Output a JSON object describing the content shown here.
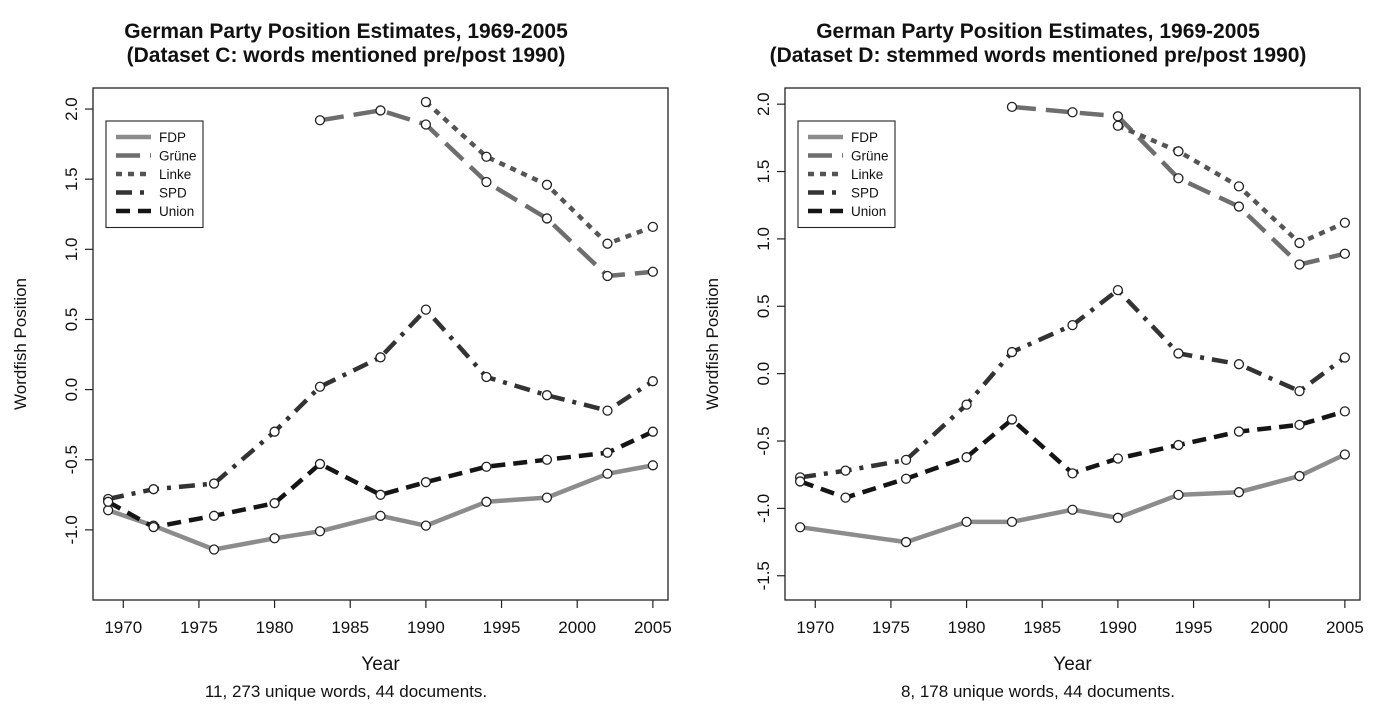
{
  "chart_data": [
    {
      "type": "line",
      "title": "German Party Position Estimates, 1969-2005",
      "subtitle": "(Dataset C: words mentioned pre/post 1990)",
      "xlabel": "Year",
      "ylabel": "Wordfish Position",
      "caption": "11, 273 unique words, 44 documents.",
      "xlim": [
        1968,
        2006
      ],
      "ylim": [
        -1.5,
        2.15
      ],
      "xticks": [
        1970,
        1975,
        1980,
        1985,
        1990,
        1995,
        2000,
        2005
      ],
      "yticks": [
        -1.0,
        -0.5,
        0.0,
        0.5,
        1.0,
        1.5,
        2.0
      ],
      "ytick_labels": [
        "-1.0",
        "-0.5",
        "0.0",
        "0.5",
        "1.0",
        "1.5",
        "2.0"
      ],
      "legend_position": "top-left",
      "series": [
        {
          "name": "FDP",
          "color": "#8c8c8c",
          "dash": "solid",
          "x": [
            1969,
            1972,
            1976,
            1980,
            1983,
            1987,
            1990,
            1994,
            1998,
            2002,
            2005
          ],
          "y": [
            -0.86,
            -0.97,
            -1.14,
            -1.06,
            -1.01,
            -0.9,
            -0.97,
            -0.8,
            -0.77,
            -0.6,
            -0.54
          ]
        },
        {
          "name": "Grüne",
          "color": "#6e6e6e",
          "dash": "longdash",
          "x": [
            1983,
            1987,
            1990,
            1994,
            1998,
            2002,
            2005
          ],
          "y": [
            1.92,
            1.99,
            1.89,
            1.48,
            1.22,
            0.81,
            0.84
          ]
        },
        {
          "name": "Linke",
          "color": "#555555",
          "dash": "dotted",
          "x": [
            1990,
            1994,
            1998,
            2002,
            2005
          ],
          "y": [
            2.05,
            1.66,
            1.46,
            1.04,
            1.16
          ]
        },
        {
          "name": "SPD",
          "color": "#333333",
          "dash": "dashdot",
          "x": [
            1969,
            1972,
            1976,
            1980,
            1983,
            1987,
            1990,
            1994,
            1998,
            2002,
            2005
          ],
          "y": [
            -0.78,
            -0.71,
            -0.67,
            -0.3,
            0.02,
            0.23,
            0.57,
            0.09,
            -0.04,
            -0.15,
            0.06
          ]
        },
        {
          "name": "Union",
          "color": "#151515",
          "dash": "dashed",
          "x": [
            1969,
            1972,
            1976,
            1980,
            1983,
            1987,
            1990,
            1994,
            1998,
            2002,
            2005
          ],
          "y": [
            -0.8,
            -0.98,
            -0.9,
            -0.81,
            -0.53,
            -0.75,
            -0.66,
            -0.55,
            -0.5,
            -0.45,
            -0.3
          ]
        }
      ]
    },
    {
      "type": "line",
      "title": "German Party Position Estimates, 1969-2005",
      "subtitle": "(Dataset D: stemmed words mentioned pre/post 1990)",
      "xlabel": "Year",
      "ylabel": "Wordfish Position",
      "caption": "8, 178 unique words, 44 documents.",
      "xlim": [
        1968,
        2006
      ],
      "ylim": [
        -1.68,
        2.12
      ],
      "xticks": [
        1970,
        1975,
        1980,
        1985,
        1990,
        1995,
        2000,
        2005
      ],
      "yticks": [
        -1.5,
        -1.0,
        -0.5,
        0.0,
        0.5,
        1.0,
        1.5,
        2.0
      ],
      "ytick_labels": [
        "-1.5",
        "-1.0",
        "-0.5",
        "0.0",
        "0.5",
        "1.0",
        "1.5",
        "2.0"
      ],
      "legend_position": "top-left",
      "series": [
        {
          "name": "FDP",
          "color": "#8c8c8c",
          "dash": "solid",
          "x": [
            1969,
            1976,
            1980,
            1983,
            1987,
            1990,
            1994,
            1998,
            2002,
            2005
          ],
          "y": [
            -1.14,
            -1.25,
            -1.1,
            -1.1,
            -1.01,
            -1.07,
            -0.9,
            -0.88,
            -0.76,
            -0.6
          ]
        },
        {
          "name": "Grüne",
          "color": "#6e6e6e",
          "dash": "longdash",
          "x": [
            1983,
            1987,
            1990,
            1994,
            1998,
            2002,
            2005
          ],
          "y": [
            1.98,
            1.94,
            1.91,
            1.45,
            1.24,
            0.81,
            0.89
          ]
        },
        {
          "name": "Linke",
          "color": "#555555",
          "dash": "dotted",
          "x": [
            1990,
            1994,
            1998,
            2002,
            2005
          ],
          "y": [
            1.84,
            1.65,
            1.39,
            0.97,
            1.12
          ]
        },
        {
          "name": "SPD",
          "color": "#333333",
          "dash": "dashdot",
          "x": [
            1969,
            1972,
            1976,
            1980,
            1983,
            1987,
            1990,
            1994,
            1998,
            2002,
            2005
          ],
          "y": [
            -0.77,
            -0.72,
            -0.64,
            -0.23,
            0.16,
            0.36,
            0.62,
            0.15,
            0.07,
            -0.13,
            0.12
          ]
        },
        {
          "name": "Union",
          "color": "#151515",
          "dash": "dashed",
          "x": [
            1969,
            1972,
            1976,
            1980,
            1983,
            1987,
            1990,
            1994,
            1998,
            2002,
            2005
          ],
          "y": [
            -0.8,
            -0.92,
            -0.78,
            -0.62,
            -0.34,
            -0.74,
            -0.63,
            -0.53,
            -0.43,
            -0.38,
            -0.28
          ]
        }
      ]
    }
  ]
}
